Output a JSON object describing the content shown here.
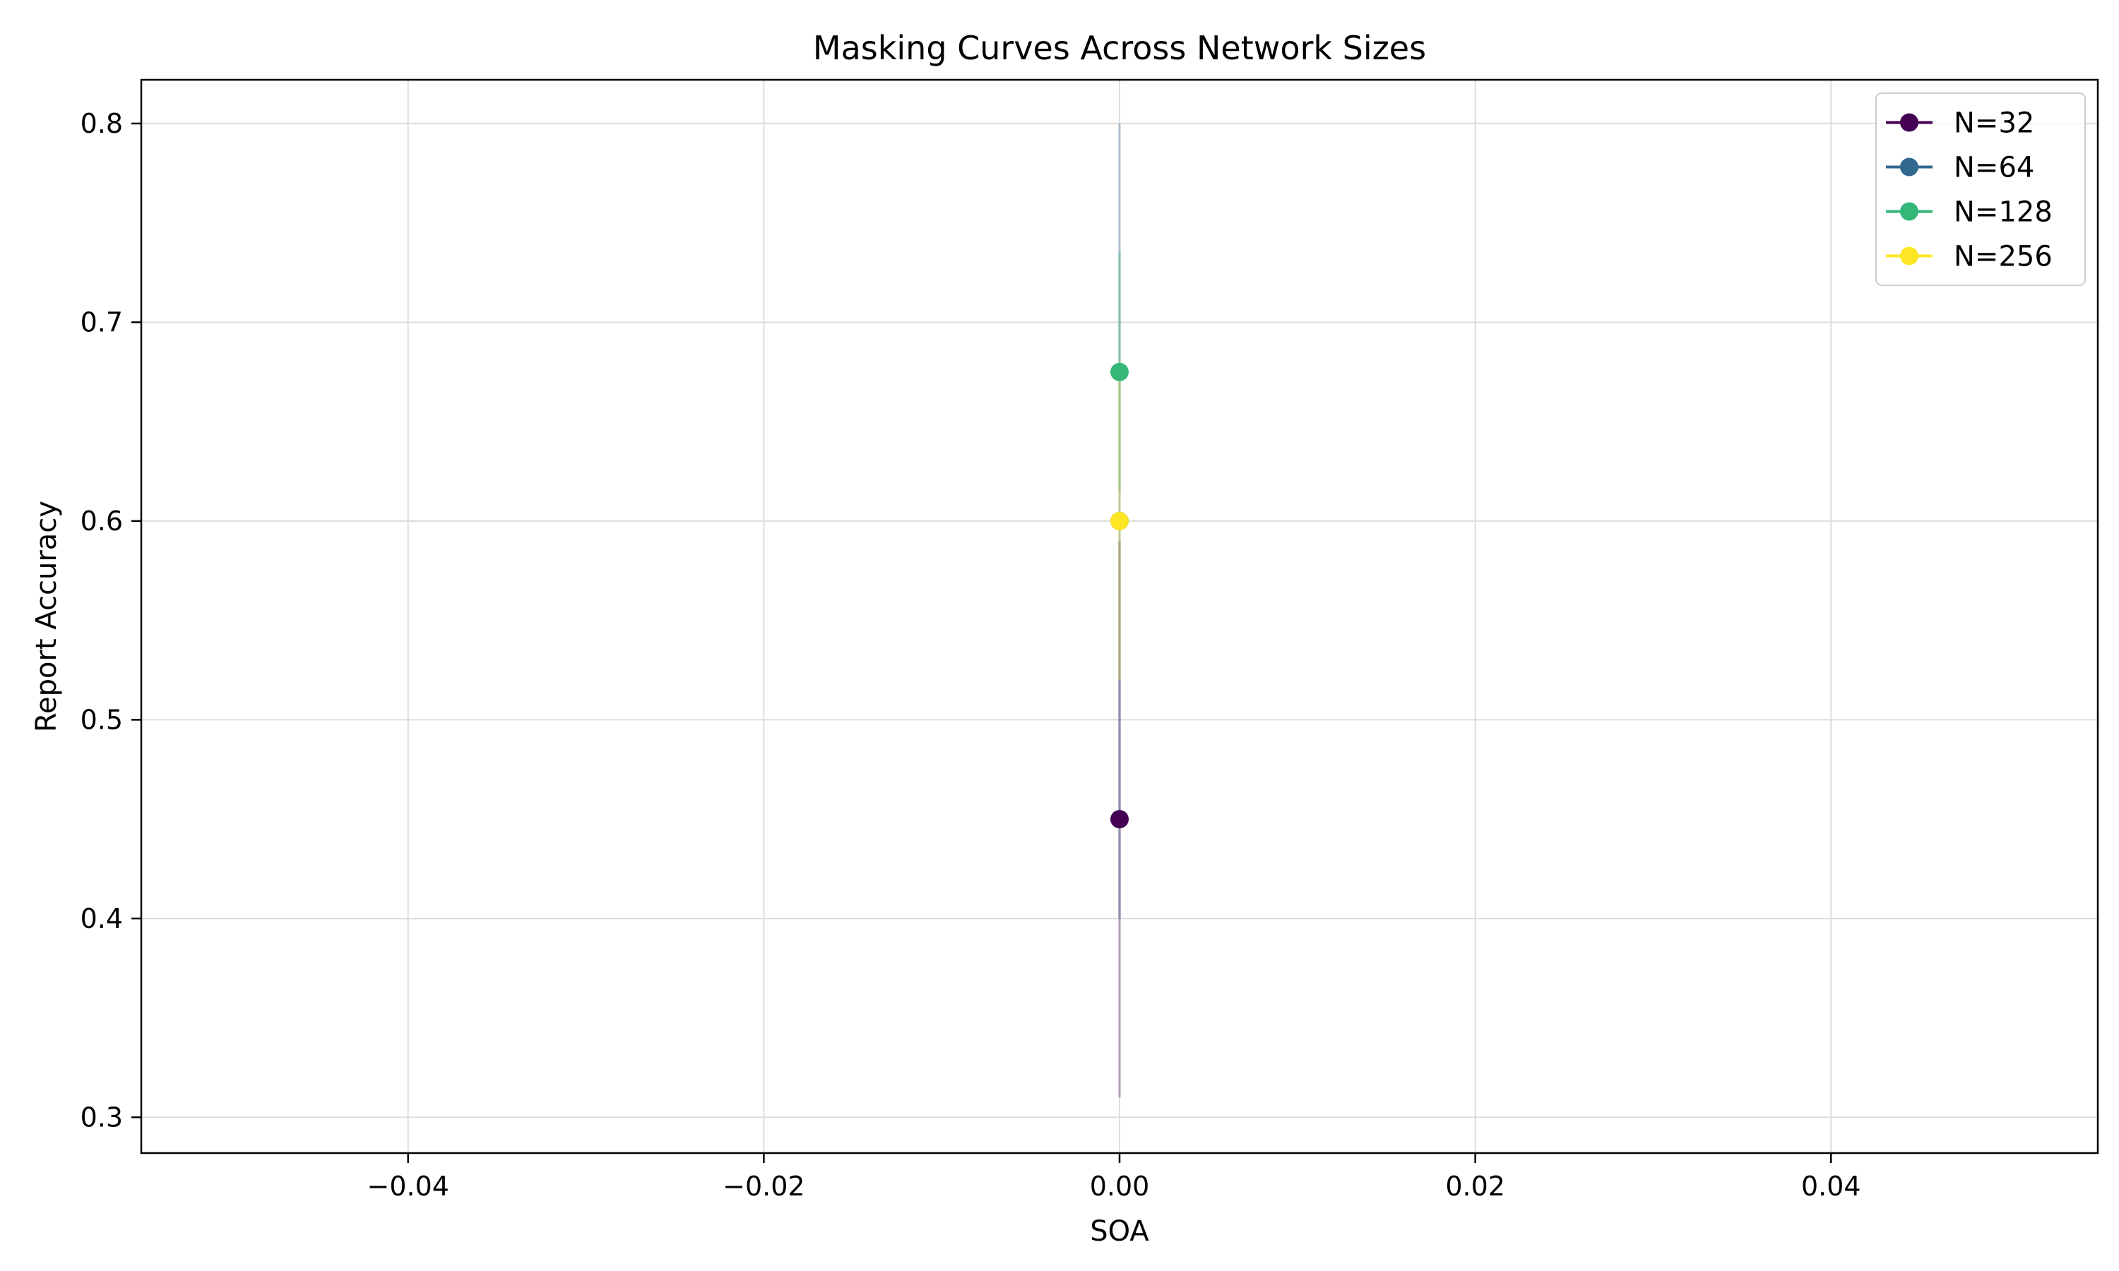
{
  "chart_data": {
    "type": "line",
    "title": "Masking Curves Across Network Sizes",
    "xlabel": "SOA",
    "ylabel": "Report Accuracy",
    "xlim": [
      -0.055,
      0.055
    ],
    "ylim": [
      0.282,
      0.822
    ],
    "xticks": [
      -0.04,
      -0.02,
      0.0,
      0.02,
      0.04
    ],
    "xtick_labels": [
      "−0.04",
      "−0.02",
      "0.00",
      "0.02",
      "0.04"
    ],
    "yticks": [
      0.3,
      0.4,
      0.5,
      0.6,
      0.7,
      0.8
    ],
    "ytick_labels": [
      "0.3",
      "0.4",
      "0.5",
      "0.6",
      "0.7",
      "0.8"
    ],
    "grid": true,
    "legend_position": "upper-right",
    "series": [
      {
        "name": "N=32",
        "color": "#440154",
        "x": [
          0.0
        ],
        "y": [
          0.45
        ],
        "err_low": 0.31,
        "err_high": 0.59
      },
      {
        "name": "N=64",
        "color": "#31688e",
        "x": [
          0.0
        ],
        "y": [
          0.6
        ],
        "err_low": 0.4,
        "err_high": 0.8
      },
      {
        "name": "N=128",
        "color": "#35b779",
        "x": [
          0.0
        ],
        "y": [
          0.675
        ],
        "err_low": 0.615,
        "err_high": 0.735
      },
      {
        "name": "N=256",
        "color": "#fde725",
        "x": [
          0.0
        ],
        "y": [
          0.6
        ],
        "err_low": 0.52,
        "err_high": 0.68
      }
    ]
  }
}
